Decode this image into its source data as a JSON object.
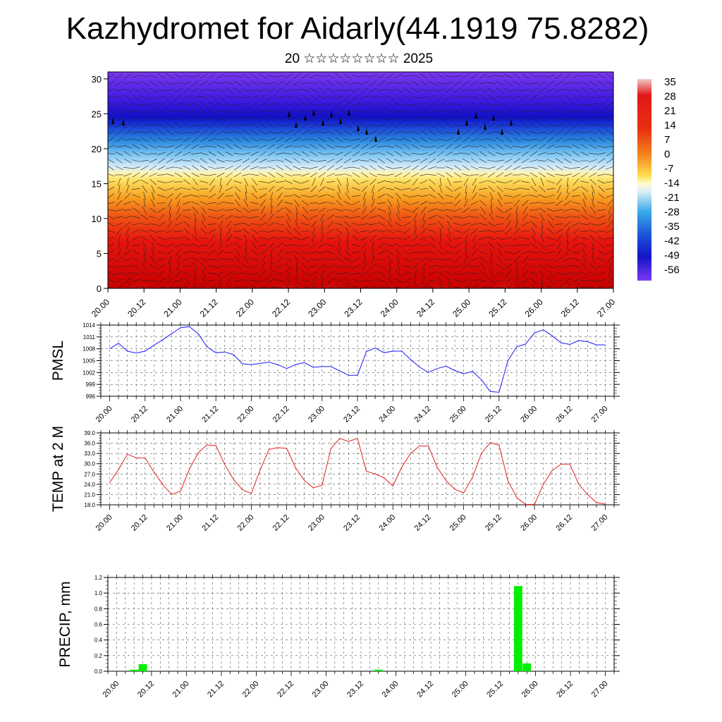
{
  "header": {
    "title": "Kazhydromet for Aidarly(44.1919 75.8282)",
    "subtitle": "20 ☆☆☆☆☆☆☆☆ 2025"
  },
  "colors": {
    "pmsl_line": "#1a1aff",
    "temp_line": "#e02020",
    "precip_bar": "#00ee00"
  },
  "colorbar": {
    "labels": [
      "35",
      "28",
      "21",
      "14",
      "7",
      "0",
      "-7",
      "-14",
      "-21",
      "-28",
      "-35",
      "-42",
      "-49",
      "-56"
    ]
  },
  "chart_data": [
    {
      "type": "heatmap",
      "name_hidden": "",
      "x_tick_labels": [
        "20.00",
        "20.12",
        "21.00",
        "21.12",
        "22.00",
        "22.12",
        "23.00",
        "23.12",
        "24.00",
        "24.12",
        "25.00",
        "25.12",
        "26.00",
        "26.12",
        "27.00"
      ],
      "y_tick_labels": [
        "0",
        "5",
        "10",
        "15",
        "20",
        "25",
        "30"
      ],
      "ylim": [
        0,
        31
      ],
      "description_levels": "temperature (°C) vs height, cold aloft, warm near surface",
      "colorbar_labels": [
        "35",
        "28",
        "21",
        "14",
        "7",
        "0",
        "-7",
        "-14",
        "-21",
        "-28",
        "-35",
        "-42",
        "-49",
        "-56"
      ]
    },
    {
      "type": "line",
      "ylabel": "PMSL",
      "x_tick_labels": [
        "20.00",
        "20.12",
        "21.00",
        "21.12",
        "22.00",
        "22.12",
        "23.00",
        "23.12",
        "24.00",
        "24.12",
        "25.00",
        "25.12",
        "26.00",
        "26.12",
        "27.00"
      ],
      "y_tick_labels": [
        "1014",
        "1011",
        "1008",
        "1005",
        "1002",
        "999",
        "996"
      ],
      "ylim": [
        996,
        1014
      ],
      "series": [
        {
          "values": [
            1008.0,
            1009.4,
            1007.4,
            1006.9,
            1007.4,
            1008.9,
            1010.3,
            1011.8,
            1013.3,
            1013.6,
            1011.8,
            1008.5,
            1007.0,
            1007.2,
            1006.5,
            1004.2,
            1004.0,
            1004.3,
            1004.6,
            1004.0,
            1003.0,
            1004.0,
            1004.5,
            1003.3,
            1003.5,
            1003.5,
            1002.4,
            1001.3,
            1001.3,
            1007.3,
            1008.2,
            1007.0,
            1007.4,
            1007.4,
            1005.3,
            1003.4,
            1002.0,
            1003.0,
            1003.6,
            1002.5,
            1001.7,
            1002.3,
            1000.2,
            997.2,
            997.0,
            1005.0,
            1008.5,
            1009.2,
            1012.0,
            1012.8,
            1011.3,
            1009.5,
            1009.1,
            1010.1,
            1009.8,
            1009.0,
            1009.0
          ]
        }
      ]
    },
    {
      "type": "line",
      "ylabel": "TEMP at 2 M",
      "x_tick_labels": [
        "20.00",
        "20.12",
        "21.00",
        "21.12",
        "22.00",
        "22.12",
        "23.00",
        "23.12",
        "24.00",
        "24.12",
        "25.00",
        "25.12",
        "26.00",
        "26.12",
        "27.00"
      ],
      "y_tick_labels": [
        "39.0",
        "36.0",
        "33.0",
        "30.0",
        "27.0",
        "24.0",
        "21.0",
        "18.0"
      ],
      "ylim": [
        18,
        39
      ],
      "series": [
        {
          "values": [
            24.5,
            28.3,
            32.8,
            31.7,
            31.7,
            27.6,
            23.9,
            21.0,
            22.0,
            28.4,
            33.2,
            35.5,
            35.3,
            29.8,
            25.4,
            22.4,
            21.3,
            28.2,
            34.2,
            34.7,
            34.5,
            28.9,
            25.1,
            23.0,
            23.7,
            34.4,
            37.4,
            36.5,
            37.4,
            27.8,
            27.0,
            25.9,
            23.5,
            29.0,
            33.0,
            35.2,
            35.2,
            29.0,
            25.1,
            22.5,
            21.5,
            26.0,
            33.0,
            36.2,
            35.4,
            25.0,
            20.1,
            18.1,
            18.1,
            24.0,
            28.0,
            29.9,
            29.9,
            24.0,
            21.0,
            18.7,
            18.2
          ]
        }
      ]
    },
    {
      "type": "bar",
      "ylabel": "PRECIP, mm",
      "x_tick_labels": [
        "20.00",
        "20.12",
        "21.00",
        "21.12",
        "22.00",
        "22.12",
        "23.00",
        "23.12",
        "24.00",
        "24.12",
        "25.00",
        "25.12",
        "26.00",
        "26.12",
        "27.00"
      ],
      "y_tick_labels": [
        "1.2",
        "1.0",
        "0.8",
        "0.6",
        "0.4",
        "0.2",
        "0.0"
      ],
      "ylim": [
        0,
        1.2
      ],
      "bars": [
        {
          "slot": 3,
          "value": 0.02
        },
        {
          "slot": 4,
          "value": 0.09
        },
        {
          "slot": 31,
          "value": 0.02
        },
        {
          "slot": 47,
          "value": 1.09
        },
        {
          "slot": 48,
          "value": 0.1
        }
      ]
    }
  ]
}
